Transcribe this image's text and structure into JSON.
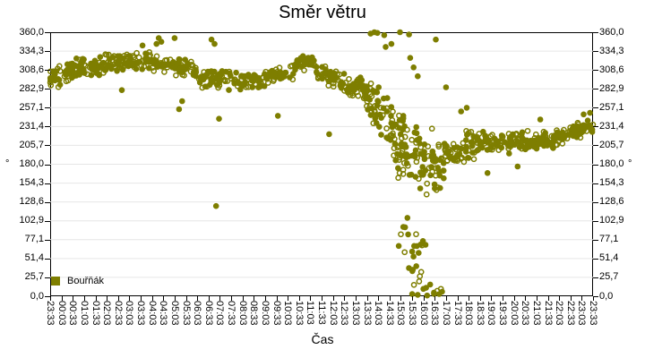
{
  "chart": {
    "title": "Směr větru",
    "xlabel": "Čas",
    "y_unit": "°",
    "series_name": "Bouřňák"
  },
  "style": {
    "point_color": "#7E7E00",
    "grid_color": "#E6E6E6",
    "axis_color": "#000000",
    "text_color": "#000000",
    "background": "#FFFFFF"
  },
  "chart_data": {
    "type": "scatter",
    "title": "Směr větru",
    "xlabel": "Čas",
    "ylabel": "°",
    "ylim": [
      0,
      360
    ],
    "x_minutes_range": [
      0,
      1440
    ],
    "x_tick_interval_minutes": 30,
    "grid": "horizontal",
    "legend_position": "bottom-left-inside",
    "y_ticks": [
      "360,0",
      "334,3",
      "308,6",
      "282,9",
      "257,1",
      "231,4",
      "205,7",
      "180,0",
      "154,3",
      "128,6",
      "102,9",
      "77,1",
      "51,4",
      "25,7",
      "0,0"
    ],
    "x_ticks": [
      "23:33",
      "00:03",
      "00:33",
      "01:03",
      "01:33",
      "02:03",
      "02:33",
      "03:03",
      "03:33",
      "04:03",
      "04:33",
      "05:03",
      "05:33",
      "06:03",
      "06:33",
      "07:03",
      "07:33",
      "08:03",
      "08:33",
      "09:03",
      "09:33",
      "10:03",
      "10:33",
      "11:03",
      "11:33",
      "12:03",
      "12:33",
      "13:03",
      "13:33",
      "14:03",
      "14:33",
      "15:03",
      "15:33",
      "16:03",
      "16:33",
      "17:03",
      "17:33",
      "18:03",
      "18:33",
      "19:03",
      "19:33",
      "20:03",
      "20:33",
      "21:03",
      "21:33",
      "22:03",
      "22:33",
      "23:03",
      "23:33"
    ],
    "series": [
      {
        "name": "Bouřňák",
        "color": "#7E7E00",
        "marker": "circle-mixed-filled-and-open",
        "marker_radius_px": 3.3,
        "ring_radius_px": 2.6,
        "ring_stroke_px": 1.5,
        "fill_ratio": 0.55,
        "seed": 7,
        "noise_multiplier": 1.6,
        "cloud_segments": [
          {
            "t0": 0,
            "t1": 60,
            "y0": 298,
            "y1": 308,
            "spread": 11,
            "n": 42
          },
          {
            "t0": 60,
            "t1": 150,
            "y0": 312,
            "y1": 316,
            "spread": 10,
            "n": 60
          },
          {
            "t0": 150,
            "t1": 290,
            "y0": 320,
            "y1": 320,
            "spread": 9,
            "n": 90
          },
          {
            "t0": 290,
            "t1": 390,
            "y0": 317,
            "y1": 310,
            "spread": 9,
            "n": 60
          },
          {
            "t0": 390,
            "t1": 560,
            "y0": 298,
            "y1": 291,
            "spread": 9,
            "n": 100
          },
          {
            "t0": 560,
            "t1": 645,
            "y0": 296,
            "y1": 306,
            "spread": 8,
            "n": 50
          },
          {
            "t0": 645,
            "t1": 705,
            "y0": 317,
            "y1": 317,
            "spread": 7,
            "n": 40
          },
          {
            "t0": 705,
            "t1": 780,
            "y0": 307,
            "y1": 293,
            "spread": 9,
            "n": 48
          },
          {
            "t0": 780,
            "t1": 847,
            "y0": 288,
            "y1": 272,
            "spread": 13,
            "n": 45
          },
          {
            "t0": 847,
            "t1": 910,
            "y0": 265,
            "y1": 235,
            "spread": 23,
            "n": 50
          },
          {
            "t0": 910,
            "t1": 985,
            "y0": 215,
            "y1": 185,
            "spread": 36,
            "n": 68
          },
          {
            "t0": 920,
            "t1": 1000,
            "y0": 95,
            "y1": 60,
            "spread": 26,
            "n": 18
          },
          {
            "t0": 985,
            "t1": 1045,
            "y0": 180,
            "y1": 175,
            "spread": 34,
            "n": 48
          },
          {
            "t0": 950,
            "t1": 1045,
            "y0": 25,
            "y1": 15,
            "spread": 14,
            "n": 13
          },
          {
            "t0": 1045,
            "t1": 1125,
            "y0": 195,
            "y1": 205,
            "spread": 16,
            "n": 58
          },
          {
            "t0": 1125,
            "t1": 1250,
            "y0": 210,
            "y1": 210,
            "spread": 10,
            "n": 88
          },
          {
            "t0": 1250,
            "t1": 1360,
            "y0": 211,
            "y1": 215,
            "spread": 9,
            "n": 78
          },
          {
            "t0": 1360,
            "t1": 1440,
            "y0": 220,
            "y1": 234,
            "spread": 8,
            "n": 60
          }
        ],
        "outlier_points": [
          [
            245,
            342
          ],
          [
            282,
            344
          ],
          [
            288,
            352
          ],
          [
            295,
            347
          ],
          [
            330,
            352
          ],
          [
            190,
            281
          ],
          [
            342,
            255
          ],
          [
            350,
            266
          ],
          [
            428,
            350
          ],
          [
            436,
            344
          ],
          [
            440,
            123
          ],
          [
            448,
            242
          ],
          [
            604,
            246
          ],
          [
            740,
            221
          ],
          [
            850,
            358
          ],
          [
            860,
            360
          ],
          [
            868,
            359
          ],
          [
            886,
            356
          ],
          [
            905,
            344
          ],
          [
            890,
            340
          ],
          [
            928,
            360
          ],
          [
            952,
            357
          ],
          [
            955,
            325
          ],
          [
            964,
            312
          ],
          [
            975,
            300
          ],
          [
            1023,
            350
          ],
          [
            975,
            2
          ],
          [
            990,
            10
          ],
          [
            1000,
            1
          ],
          [
            1008,
            16
          ],
          [
            1018,
            5
          ],
          [
            1032,
            3
          ],
          [
            1050,
            285
          ],
          [
            1090,
            252
          ],
          [
            1105,
            257
          ],
          [
            1160,
            168
          ],
          [
            1240,
            177
          ],
          [
            1300,
            241
          ],
          [
            1415,
            248
          ],
          [
            1432,
            250
          ]
        ]
      }
    ]
  }
}
